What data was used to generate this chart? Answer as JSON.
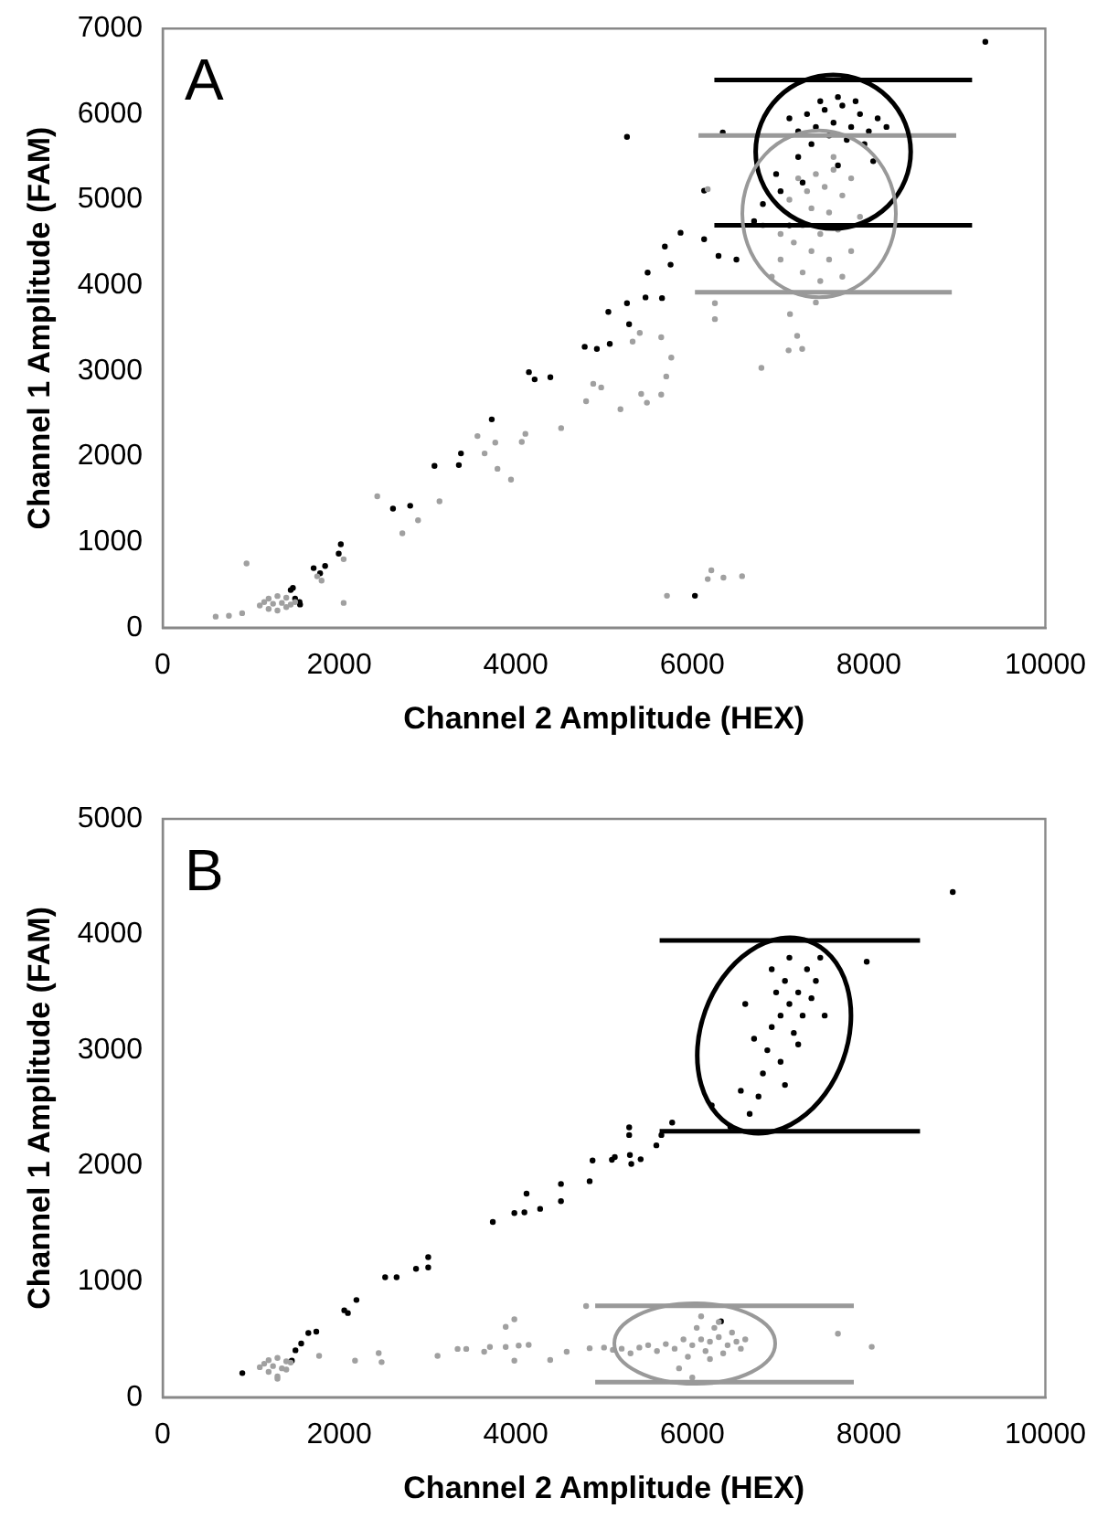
{
  "chart_data": [
    {
      "type": "scatter",
      "xlabel": "Channel 2 Amplitude (HEX)",
      "ylabel": "Channel 1 Amplitude (FAM)",
      "xlim": [
        0,
        10000
      ],
      "xticks": [
        0,
        2000,
        4000,
        6000,
        8000,
        10000
      ],
      "ylim": [
        0,
        7000
      ],
      "yticks": [
        0,
        1000,
        2000,
        3000,
        4000,
        5000,
        6000,
        7000
      ],
      "grid": false,
      "legend": false,
      "marker": "circle",
      "annotations": [
        "A"
      ],
      "series": [
        {
          "color": "#a0a0a0",
          "x": [
            1100,
            1200,
            1300,
            1400,
            1500,
            1200,
            1300,
            1400,
            1250,
            1350,
            1150,
            1450,
            600,
            750,
            900,
            950,
            1750,
            1800,
            2050,
            2050,
            2431,
            2715,
            2893,
            3136,
            3566,
            3647,
            3768,
            3793,
            3946,
            4068,
            4109,
            4514,
            4797,
            4878,
            4968,
            5186,
            5421,
            5486,
            5648,
            5705,
            5762,
            5324,
            5648,
            5405,
            6783,
            7091,
            7245,
            7188,
            7107,
            6256,
            6256,
            6175,
            5713,
            6216,
            6353,
            6564,
            6175,
            7100,
            7300,
            7500,
            7700,
            7400,
            7600,
            7200,
            7800,
            7350,
            7550,
            7250,
            7450,
            7650,
            7150,
            7350,
            7550,
            7000,
            7800,
            7250,
            7450,
            6900,
            7700,
            7400,
            7000,
            7600,
            6800,
            7900
          ],
          "values": [
            260,
            220,
            200,
            240,
            300,
            340,
            370,
            350,
            280,
            290,
            300,
            270,
            130,
            140,
            170,
            750,
            600,
            550,
            800,
            290,
            1535,
            1103,
            1255,
            1476,
            2239,
            2036,
            2163,
            1857,
            1730,
            2171,
            2265,
            2332,
            2646,
            2850,
            2807,
            2553,
            2731,
            2629,
            2723,
            2935,
            3155,
            3342,
            3393,
            3444,
            3036,
            3240,
            3257,
            3410,
            3664,
            3605,
            3791,
            5123,
            373,
            670,
            585,
            602,
            568,
            5000,
            5100,
            5150,
            5050,
            5300,
            5350,
            5250,
            5250,
            4900,
            4850,
            4700,
            4600,
            4650,
            4500,
            4400,
            4300,
            4300,
            4400,
            4150,
            4050,
            4100,
            4100,
            3800,
            4600,
            5500,
            4700,
            4800
          ]
        },
        {
          "color": "#000000",
          "x": [
            9320,
            5260,
            6030,
            5867,
            6134,
            5689,
            6297,
            6500,
            5494,
            5754,
            5657,
            5470,
            5260,
            5049,
            5284,
            4919,
            5065,
            4781,
            4149,
            4214,
            4392,
            3728,
            3379,
            3355,
            3079,
            2609,
            2804,
            2018,
            1994,
            1840,
            1710,
            1783,
            1556,
            1475,
            1500,
            1450,
            1550,
            6345,
            6134,
            7200,
            7400,
            7600,
            7800,
            8000,
            7500,
            7700,
            7900,
            7300,
            7650,
            8100,
            7100,
            7550,
            7750,
            7350,
            7950,
            7200,
            8200,
            7450,
            7850,
            6950,
            7000,
            7650,
            7250,
            8050,
            6800,
            7100,
            6700
          ],
          "values": [
            6845,
            5734,
            373,
            4614,
            4538,
            4453,
            4343,
            4300,
            4148,
            4241,
            3851,
            3859,
            3791,
            3690,
            3545,
            3257,
            3316,
            3282,
            2986,
            2901,
            2926,
            2434,
            2036,
            1900,
            1891,
            1391,
            1425,
            975,
            865,
            721,
            696,
            636,
            271,
            466,
            340,
            440,
            300,
            5785,
            5106,
            5800,
            5850,
            5900,
            5850,
            5800,
            6050,
            6100,
            6000,
            6000,
            6200,
            5950,
            5950,
            5750,
            5700,
            5650,
            5650,
            5500,
            5850,
            6150,
            6150,
            5300,
            5100,
            5400,
            5200,
            5450,
            4950,
            4700,
            4750
          ]
        },
        {
          "type": "line",
          "marker": "none",
          "color": "#000000",
          "x": [
            6250,
            9170
          ],
          "values": [
            6400,
            6400
          ]
        },
        {
          "type": "line",
          "marker": "none",
          "color": "#000000",
          "x": [
            6250,
            9170
          ],
          "values": [
            4700,
            4700
          ]
        },
        {
          "type": "line",
          "marker": "none",
          "color": "#999999",
          "x": [
            6070,
            8990
          ],
          "values": [
            5750,
            5750
          ]
        },
        {
          "type": "line",
          "marker": "none",
          "color": "#999999",
          "x": [
            6030,
            8940
          ],
          "values": [
            3920,
            3920
          ]
        }
      ]
    },
    {
      "type": "scatter",
      "xlabel": "Channel 2 Amplitude (HEX)",
      "ylabel": "Channel 1 Amplitude (FAM)",
      "xlim": [
        0,
        10000
      ],
      "xticks": [
        0,
        2000,
        4000,
        6000,
        8000,
        10000
      ],
      "ylim": [
        0,
        5000
      ],
      "yticks": [
        0,
        1000,
        2000,
        3000,
        4000,
        5000
      ],
      "grid": false,
      "legend": false,
      "marker": "circle",
      "annotations": [
        "B"
      ],
      "series": [
        {
          "color": "#a0a0a0",
          "x": [
            1100,
            1200,
            1300,
            1400,
            1450,
            1200,
            1300,
            1400,
            1250,
            1350,
            1150,
            1300,
            1772,
            2179,
            2447,
            2480,
            3114,
            3341,
            3439,
            3642,
            3707,
            3886,
            3984,
            3886,
            4033,
            4146,
            3984,
            4390,
            4577,
            4797,
            4837,
            7650,
            8033,
            6000,
            6100,
            6200,
            6300,
            6400,
            6150,
            6250,
            6050,
            6350,
            5950,
            6450,
            6500,
            5900,
            6200,
            6100,
            5800,
            5700,
            6550,
            5600,
            5500,
            5400,
            5300,
            5200,
            5100,
            5000,
            5850,
            6000,
            6300,
            6600
          ],
          "values": [
            260,
            220,
            180,
            240,
            300,
            320,
            340,
            310,
            270,
            250,
            290,
            160,
            358,
            316,
            382,
            304,
            358,
            418,
            418,
            394,
            435,
            609,
            674,
            435,
            447,
            453,
            316,
            322,
            394,
            788,
            424,
            549,
            436,
            450,
            500,
            480,
            520,
            450,
            400,
            600,
            600,
            380,
            350,
            560,
            480,
            500,
            330,
            700,
            420,
            460,
            420,
            400,
            450,
            430,
            380,
            420,
            410,
            430,
            250,
            170,
            650,
            500
          ]
        },
        {
          "color": "#000000",
          "x": [
            8951,
            7976,
            5772,
            5650,
            5593,
            5415,
            5309,
            5293,
            5285,
            5285,
            5122,
            5089,
            4870,
            4837,
            4512,
            4512,
            4276,
            4122,
            4098,
            3984,
            3740,
            3008,
            3008,
            2870,
            2650,
            2520,
            2195,
            2098,
            2057,
            1740,
            1650,
            1569,
            1504,
            1463,
            902,
            6325,
            6431,
            6220,
            7100,
            7000,
            7200,
            6900,
            7050,
            7150,
            6850,
            7300,
            7250,
            6950,
            7100,
            6800,
            7000,
            6750,
            7350,
            6700,
            7200,
            6900,
            7400,
            6650,
            7450,
            6600,
            7050,
            7500,
            6550
          ],
          "values": [
            4368,
            3765,
            2375,
            2267,
            2178,
            2058,
            2017,
            2094,
            2267,
            2333,
            2076,
            2053,
            2047,
            1868,
            1844,
            1695,
            1629,
            1760,
            1599,
            1593,
            1516,
            1211,
            1122,
            1110,
            1038,
            1038,
            841,
            728,
            752,
            567,
            555,
            465,
            406,
            316,
            209,
            656,
            2339,
            2524,
            3400,
            3300,
            3500,
            3200,
            3600,
            3150,
            3000,
            3700,
            3300,
            3500,
            3800,
            2800,
            2900,
            2600,
            3450,
            3100,
            3050,
            3700,
            3600,
            2450,
            3800,
            3400,
            2700,
            3300,
            2650
          ]
        },
        {
          "type": "line",
          "marker": "none",
          "color": "#000000",
          "x": [
            5630,
            8580
          ],
          "values": [
            3950,
            3950
          ]
        },
        {
          "type": "line",
          "marker": "none",
          "color": "#000000",
          "x": [
            5630,
            8580
          ],
          "values": [
            2300,
            2300
          ]
        },
        {
          "type": "line",
          "marker": "none",
          "color": "#999999",
          "x": [
            4900,
            7830
          ],
          "values": [
            790,
            790
          ]
        },
        {
          "type": "line",
          "marker": "none",
          "color": "#999999",
          "x": [
            4900,
            7830
          ],
          "values": [
            130,
            130
          ]
        }
      ]
    }
  ]
}
